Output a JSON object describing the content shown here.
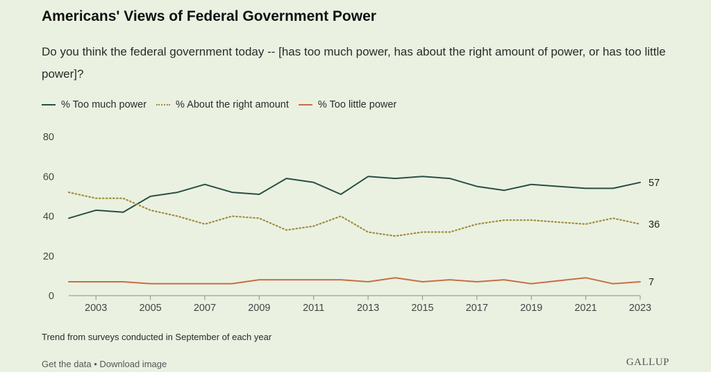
{
  "header": {
    "title": "Americans' Views of Federal Government Power",
    "subtitle": "Do you think the federal government today -- [has too much power, has about the right amount of power, or has too little power]?"
  },
  "legend": [
    {
      "label": "% Too much power",
      "style": "solid",
      "color": "#284e44"
    },
    {
      "label": "% About the right amount",
      "style": "dotted",
      "color": "#a08a3c"
    },
    {
      "label": "% Too little power",
      "style": "solid",
      "color": "#c86d45"
    }
  ],
  "chart_data": {
    "type": "line",
    "x": [
      2002,
      2003,
      2004,
      2005,
      2006,
      2007,
      2008,
      2009,
      2010,
      2011,
      2012,
      2013,
      2014,
      2015,
      2016,
      2017,
      2018,
      2019,
      2020,
      2021,
      2022,
      2023
    ],
    "x_ticks": [
      2003,
      2005,
      2007,
      2009,
      2011,
      2013,
      2015,
      2017,
      2019,
      2021,
      2023
    ],
    "y_ticks": [
      0,
      20,
      40,
      60,
      80
    ],
    "ylim": [
      0,
      80
    ],
    "xlim": [
      2002,
      2023
    ],
    "grid": false,
    "legend_position": "top-left",
    "series": [
      {
        "name": "% Too much power",
        "color": "#284e44",
        "dash": "solid",
        "values": [
          39,
          43,
          42,
          50,
          52,
          56,
          52,
          51,
          59,
          57,
          51,
          60,
          59,
          60,
          59,
          55,
          53,
          56,
          55,
          54,
          54,
          57
        ],
        "end_label": "57"
      },
      {
        "name": "% About the right amount",
        "color": "#a08a3c",
        "dash": "dotted",
        "values": [
          52,
          49,
          49,
          43,
          40,
          36,
          40,
          39,
          33,
          35,
          40,
          32,
          30,
          32,
          32,
          36,
          38,
          38,
          37,
          36,
          39,
          36
        ],
        "end_label": "36"
      },
      {
        "name": "% Too little power",
        "color": "#c86d45",
        "dash": "solid",
        "values": [
          7,
          7,
          7,
          6,
          6,
          6,
          6,
          8,
          8,
          8,
          8,
          7,
          9,
          7,
          8,
          7,
          8,
          6,
          7.5,
          9,
          6,
          7
        ],
        "end_label": "7"
      }
    ]
  },
  "footnote": "Trend from surveys conducted in September of each year",
  "footer": {
    "get_data": "Get the data",
    "separator": "•",
    "download": "Download image",
    "brand": "GALLUP"
  }
}
